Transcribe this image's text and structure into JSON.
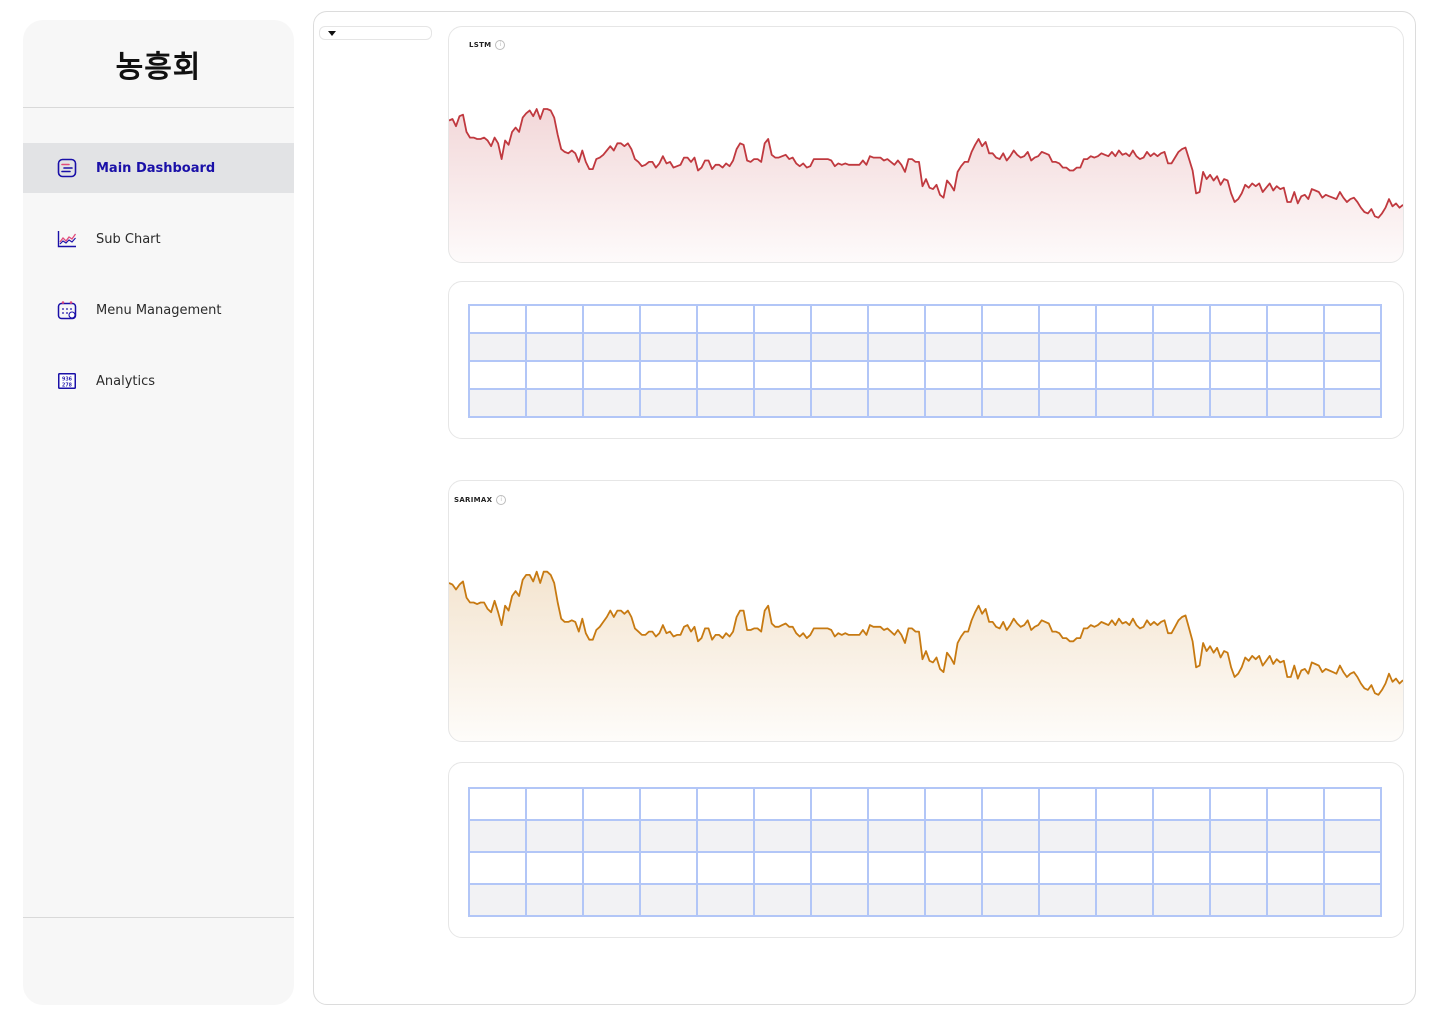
{
  "brand": {
    "name": "농흥회"
  },
  "nav": {
    "items": [
      {
        "label": "Main Dashboard",
        "icon": "dashboard-icon",
        "active": true
      },
      {
        "label": "Sub Chart",
        "icon": "line-chart-icon",
        "active": false
      },
      {
        "label": "Menu Management",
        "icon": "calendar-icon",
        "active": false
      },
      {
        "label": "Analytics",
        "icon": "numbers-icon",
        "active": false
      }
    ]
  },
  "colors": {
    "accent": "#1a10a8",
    "lstm_line": "#c0393f",
    "sarimax_line": "#c77a12",
    "table_border": "#b2c6f7"
  },
  "dropdown": {
    "value": ""
  },
  "charts": {
    "lstm": {
      "title": "LSTM"
    },
    "sarimax": {
      "title": "SARIMAX"
    }
  },
  "chart_data": [
    {
      "type": "area",
      "title": "LSTM",
      "grid": false,
      "y_description": "relative level, 0 = bottom, 100 = top",
      "values": [
        78,
        79,
        74,
        81,
        82,
        70,
        66,
        66,
        65,
        65,
        66,
        64,
        60,
        66,
        62,
        51,
        64,
        61,
        70,
        73,
        70,
        80,
        83,
        85,
        81,
        86,
        79,
        86,
        86,
        85,
        80,
        68,
        58,
        56,
        55,
        57,
        55,
        49,
        57,
        49,
        44,
        44,
        51,
        52,
        54,
        57,
        60,
        57,
        62,
        62,
        60,
        62,
        58,
        51,
        49,
        46,
        47,
        49,
        49,
        45,
        48,
        53,
        48,
        49,
        45,
        46,
        47,
        52,
        52,
        49,
        52,
        43,
        45,
        50,
        50,
        44,
        47,
        47,
        45,
        48,
        46,
        50,
        58,
        62,
        61,
        50,
        49,
        51,
        51,
        49,
        62,
        65,
        54,
        52,
        52,
        53,
        54,
        51,
        52,
        48,
        46,
        48,
        45,
        46,
        51,
        51,
        51,
        51,
        51,
        50,
        46,
        48,
        47,
        48,
        47,
        47,
        47,
        47,
        50,
        47,
        53,
        52,
        52,
        52,
        50,
        51,
        49,
        47,
        50,
        47,
        42,
        51,
        51,
        49,
        49,
        32,
        37,
        31,
        30,
        33,
        26,
        24,
        36,
        33,
        29,
        42,
        46,
        49,
        49,
        56,
        61,
        65,
        60,
        63,
        55,
        55,
        52,
        51,
        55,
        50,
        53,
        57,
        54,
        52,
        53,
        56,
        50,
        52,
        53,
        56,
        55,
        54,
        49,
        49,
        48,
        45,
        45,
        43,
        43,
        45,
        45,
        51,
        51,
        53,
        52,
        53,
        55,
        54,
        53,
        56,
        53,
        57,
        54,
        55,
        53,
        57,
        53,
        51,
        52,
        56,
        53,
        55,
        53,
        55,
        56,
        48,
        48,
        52,
        56,
        58,
        59,
        51,
        43,
        27,
        28,
        42,
        37,
        40,
        36,
        39,
        33,
        37,
        36,
        27,
        21,
        23,
        27,
        33,
        31,
        34,
        32,
        34,
        28,
        31,
        34,
        29,
        32,
        30,
        31,
        21,
        21,
        28,
        20,
        25,
        26,
        23,
        30,
        29,
        28,
        24,
        26,
        25,
        24,
        23,
        28,
        24,
        21,
        23,
        24,
        21,
        17,
        14,
        13,
        16,
        11,
        10,
        13,
        17,
        23,
        18,
        20,
        17,
        19
      ]
    },
    {
      "type": "area",
      "title": "SARIMAX",
      "grid": false,
      "y_description": "relative level, 0 = bottom, 100 = top",
      "values": [
        79,
        78,
        75,
        78,
        80,
        70,
        67,
        67,
        66,
        67,
        67,
        63,
        61,
        68,
        61,
        53,
        65,
        62,
        71,
        74,
        71,
        81,
        84,
        84,
        80,
        86,
        79,
        86,
        86,
        84,
        79,
        67,
        57,
        55,
        55,
        56,
        55,
        49,
        57,
        48,
        44,
        44,
        50,
        52,
        55,
        58,
        62,
        58,
        62,
        62,
        60,
        62,
        58,
        51,
        49,
        47,
        47,
        49,
        49,
        46,
        48,
        53,
        48,
        49,
        46,
        47,
        47,
        52,
        53,
        49,
        52,
        43,
        45,
        51,
        51,
        44,
        47,
        47,
        45,
        48,
        46,
        49,
        58,
        62,
        62,
        50,
        50,
        51,
        51,
        49,
        62,
        65,
        54,
        52,
        52,
        53,
        54,
        52,
        52,
        48,
        46,
        48,
        45,
        47,
        51,
        51,
        51,
        51,
        51,
        50,
        46,
        48,
        47,
        48,
        47,
        47,
        47,
        47,
        50,
        47,
        53,
        52,
        52,
        52,
        50,
        51,
        49,
        47,
        50,
        47,
        42,
        51,
        51,
        49,
        49,
        32,
        37,
        31,
        30,
        33,
        26,
        24,
        36,
        33,
        29,
        42,
        46,
        49,
        49,
        56,
        61,
        65,
        60,
        63,
        55,
        55,
        52,
        51,
        55,
        50,
        53,
        57,
        54,
        52,
        53,
        56,
        50,
        52,
        53,
        56,
        55,
        54,
        49,
        49,
        48,
        45,
        45,
        43,
        43,
        45,
        45,
        51,
        51,
        53,
        52,
        53,
        55,
        54,
        53,
        56,
        53,
        57,
        54,
        55,
        53,
        57,
        53,
        51,
        52,
        56,
        53,
        55,
        53,
        55,
        56,
        48,
        48,
        52,
        56,
        58,
        59,
        51,
        43,
        27,
        28,
        42,
        37,
        40,
        36,
        39,
        33,
        37,
        36,
        27,
        21,
        23,
        27,
        33,
        31,
        34,
        32,
        34,
        28,
        31,
        34,
        29,
        32,
        30,
        31,
        21,
        21,
        28,
        20,
        25,
        26,
        23,
        30,
        29,
        28,
        24,
        26,
        25,
        24,
        23,
        28,
        24,
        21,
        23,
        24,
        21,
        17,
        14,
        13,
        16,
        11,
        10,
        13,
        17,
        23,
        18,
        20,
        17,
        19
      ]
    }
  ],
  "tables": {
    "rows": 4,
    "cols": 16
  }
}
